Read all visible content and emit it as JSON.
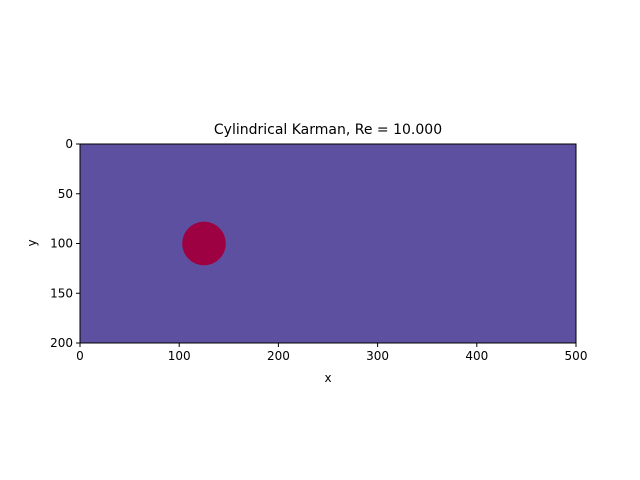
{
  "chart_data": {
    "type": "heatmap",
    "title": "Cylindrical Karman, Re = 10.000",
    "xlabel": "x",
    "ylabel": "y",
    "xlim": [
      0,
      500
    ],
    "ylim": [
      200,
      0
    ],
    "y_inverted": true,
    "xticks": [
      0,
      100,
      200,
      300,
      400,
      500
    ],
    "yticks": [
      0,
      50,
      100,
      150,
      200
    ],
    "grid": false,
    "field_color": "#5e50a1",
    "obstacle": {
      "shape": "circle",
      "center_x": 125,
      "center_y": 100,
      "radius": 22,
      "color": "#9e0142"
    }
  }
}
